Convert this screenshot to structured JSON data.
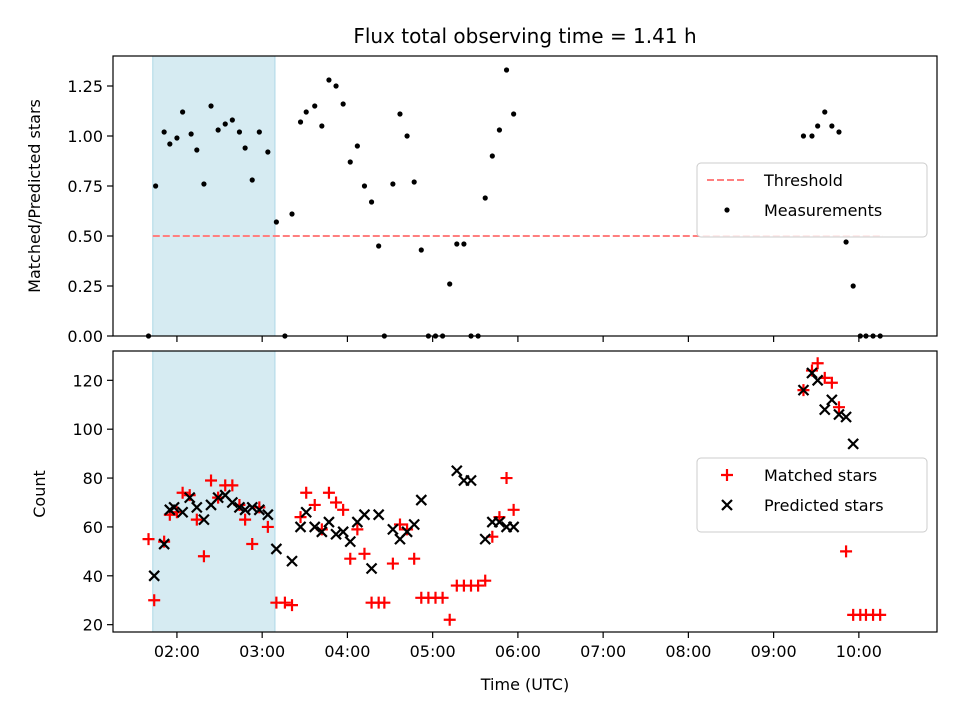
{
  "chart_data": [
    {
      "type": "scatter",
      "title": "Flux total observing time = 1.41 h",
      "xlabel": "",
      "ylabel": "Matched/Predicted stars",
      "xlim": [
        "01:15",
        "10:55"
      ],
      "ylim": [
        0,
        1.4
      ],
      "y_ticks": [
        "0.00",
        "0.25",
        "0.50",
        "0.75",
        "1.00",
        "1.25"
      ],
      "highlight_span": {
        "x_start": "01:43",
        "x_end": "03:09",
        "color": "#add8e6"
      },
      "legend_position": "center-right",
      "series": [
        {
          "name": "Threshold",
          "kind": "dashed-line",
          "color": "#ff7f7f",
          "points": [
            {
              "x": "01:43",
              "y": 0.5
            },
            {
              "x": "10:17",
              "y": 0.5
            }
          ]
        },
        {
          "name": "Measurements",
          "kind": "dot",
          "color": "#000000",
          "points": [
            {
              "x": "01:40",
              "y": 0.0
            },
            {
              "x": "01:45",
              "y": 0.75
            },
            {
              "x": "01:51",
              "y": 1.02
            },
            {
              "x": "01:55",
              "y": 0.96
            },
            {
              "x": "02:00",
              "y": 0.99
            },
            {
              "x": "02:04",
              "y": 1.12
            },
            {
              "x": "02:10",
              "y": 1.01
            },
            {
              "x": "02:14",
              "y": 0.93
            },
            {
              "x": "02:19",
              "y": 0.76
            },
            {
              "x": "02:24",
              "y": 1.15
            },
            {
              "x": "02:29",
              "y": 1.03
            },
            {
              "x": "02:34",
              "y": 1.06
            },
            {
              "x": "02:39",
              "y": 1.08
            },
            {
              "x": "02:44",
              "y": 1.02
            },
            {
              "x": "02:48",
              "y": 0.94
            },
            {
              "x": "02:53",
              "y": 0.78
            },
            {
              "x": "02:58",
              "y": 1.02
            },
            {
              "x": "03:04",
              "y": 0.92
            },
            {
              "x": "03:10",
              "y": 0.57
            },
            {
              "x": "03:16",
              "y": 0.0
            },
            {
              "x": "03:21",
              "y": 0.61
            },
            {
              "x": "03:27",
              "y": 1.07
            },
            {
              "x": "03:31",
              "y": 1.12
            },
            {
              "x": "03:37",
              "y": 1.15
            },
            {
              "x": "03:42",
              "y": 1.05
            },
            {
              "x": "03:47",
              "y": 1.28
            },
            {
              "x": "03:52",
              "y": 1.25
            },
            {
              "x": "03:57",
              "y": 1.16
            },
            {
              "x": "04:02",
              "y": 0.87
            },
            {
              "x": "04:07",
              "y": 0.95
            },
            {
              "x": "04:12",
              "y": 0.75
            },
            {
              "x": "04:17",
              "y": 0.67
            },
            {
              "x": "04:22",
              "y": 0.45
            },
            {
              "x": "04:26",
              "y": 0.0
            },
            {
              "x": "04:32",
              "y": 0.76
            },
            {
              "x": "04:37",
              "y": 1.11
            },
            {
              "x": "04:42",
              "y": 1.0
            },
            {
              "x": "04:47",
              "y": 0.77
            },
            {
              "x": "04:52",
              "y": 0.43
            },
            {
              "x": "04:57",
              "y": 0.0
            },
            {
              "x": "05:02",
              "y": 0.0
            },
            {
              "x": "05:07",
              "y": 0.0
            },
            {
              "x": "05:12",
              "y": 0.26
            },
            {
              "x": "05:17",
              "y": 0.46
            },
            {
              "x": "05:22",
              "y": 0.46
            },
            {
              "x": "05:27",
              "y": 0.0
            },
            {
              "x": "05:32",
              "y": 0.0
            },
            {
              "x": "05:37",
              "y": 0.69
            },
            {
              "x": "05:42",
              "y": 0.9
            },
            {
              "x": "05:47",
              "y": 1.03
            },
            {
              "x": "05:52",
              "y": 1.33
            },
            {
              "x": "05:57",
              "y": 1.11
            },
            {
              "x": "09:21",
              "y": 1.0
            },
            {
              "x": "09:27",
              "y": 1.0
            },
            {
              "x": "09:31",
              "y": 1.05
            },
            {
              "x": "09:36",
              "y": 1.12
            },
            {
              "x": "09:41",
              "y": 1.05
            },
            {
              "x": "09:46",
              "y": 1.02
            },
            {
              "x": "09:51",
              "y": 0.47
            },
            {
              "x": "09:56",
              "y": 0.25
            },
            {
              "x": "10:01",
              "y": 0.0
            },
            {
              "x": "10:05",
              "y": 0.0
            },
            {
              "x": "10:10",
              "y": 0.0
            },
            {
              "x": "10:15",
              "y": 0.0
            }
          ]
        }
      ]
    },
    {
      "type": "scatter",
      "title": "",
      "xlabel": "Time (UTC)",
      "ylabel": "Count",
      "xlim": [
        "01:15",
        "10:55"
      ],
      "ylim": [
        17,
        132
      ],
      "x_ticks": [
        "02:00",
        "03:00",
        "04:00",
        "05:00",
        "06:00",
        "07:00",
        "08:00",
        "09:00",
        "10:00"
      ],
      "y_ticks": [
        "20",
        "40",
        "60",
        "80",
        "100",
        "120"
      ],
      "highlight_span": {
        "x_start": "01:43",
        "x_end": "03:09",
        "color": "#add8e6"
      },
      "legend_position": "center-right",
      "series": [
        {
          "name": "Matched stars",
          "marker": "+",
          "color": "#ff0000",
          "points": [
            {
              "x": "01:40",
              "y": 55
            },
            {
              "x": "01:44",
              "y": 30
            },
            {
              "x": "01:51",
              "y": 54
            },
            {
              "x": "01:55",
              "y": 65
            },
            {
              "x": "02:00",
              "y": 66
            },
            {
              "x": "02:04",
              "y": 74
            },
            {
              "x": "02:09",
              "y": 73
            },
            {
              "x": "02:14",
              "y": 63
            },
            {
              "x": "02:19",
              "y": 48
            },
            {
              "x": "02:24",
              "y": 79
            },
            {
              "x": "02:29",
              "y": 72
            },
            {
              "x": "02:34",
              "y": 77
            },
            {
              "x": "02:39",
              "y": 77
            },
            {
              "x": "02:44",
              "y": 69
            },
            {
              "x": "02:48",
              "y": 63
            },
            {
              "x": "02:53",
              "y": 53
            },
            {
              "x": "02:58",
              "y": 68
            },
            {
              "x": "03:04",
              "y": 60
            },
            {
              "x": "03:10",
              "y": 29
            },
            {
              "x": "03:16",
              "y": 29
            },
            {
              "x": "03:21",
              "y": 28
            },
            {
              "x": "03:27",
              "y": 64
            },
            {
              "x": "03:31",
              "y": 74
            },
            {
              "x": "03:37",
              "y": 69
            },
            {
              "x": "03:42",
              "y": 59
            },
            {
              "x": "03:47",
              "y": 74
            },
            {
              "x": "03:52",
              "y": 70
            },
            {
              "x": "03:57",
              "y": 67
            },
            {
              "x": "04:02",
              "y": 47
            },
            {
              "x": "04:07",
              "y": 59
            },
            {
              "x": "04:12",
              "y": 49
            },
            {
              "x": "04:17",
              "y": 29
            },
            {
              "x": "04:22",
              "y": 29
            },
            {
              "x": "04:26",
              "y": 29
            },
            {
              "x": "04:32",
              "y": 45
            },
            {
              "x": "04:37",
              "y": 61
            },
            {
              "x": "04:42",
              "y": 59
            },
            {
              "x": "04:47",
              "y": 47
            },
            {
              "x": "04:52",
              "y": 31
            },
            {
              "x": "04:57",
              "y": 31
            },
            {
              "x": "05:02",
              "y": 31
            },
            {
              "x": "05:07",
              "y": 31
            },
            {
              "x": "05:12",
              "y": 22
            },
            {
              "x": "05:17",
              "y": 36
            },
            {
              "x": "05:22",
              "y": 36
            },
            {
              "x": "05:27",
              "y": 36
            },
            {
              "x": "05:32",
              "y": 36
            },
            {
              "x": "05:37",
              "y": 38
            },
            {
              "x": "05:42",
              "y": 56
            },
            {
              "x": "05:47",
              "y": 64
            },
            {
              "x": "05:52",
              "y": 80
            },
            {
              "x": "05:57",
              "y": 67
            },
            {
              "x": "09:21",
              "y": 116
            },
            {
              "x": "09:27",
              "y": 124
            },
            {
              "x": "09:31",
              "y": 127
            },
            {
              "x": "09:36",
              "y": 121
            },
            {
              "x": "09:41",
              "y": 119
            },
            {
              "x": "09:46",
              "y": 109
            },
            {
              "x": "09:51",
              "y": 50
            },
            {
              "x": "09:56",
              "y": 24
            },
            {
              "x": "10:01",
              "y": 24
            },
            {
              "x": "10:05",
              "y": 24
            },
            {
              "x": "10:10",
              "y": 24
            },
            {
              "x": "10:15",
              "y": 24
            }
          ]
        },
        {
          "name": "Predicted stars",
          "marker": "x",
          "color": "#000000",
          "points": [
            {
              "x": "01:44",
              "y": 40
            },
            {
              "x": "01:51",
              "y": 53
            },
            {
              "x": "01:55",
              "y": 67
            },
            {
              "x": "01:58",
              "y": 68
            },
            {
              "x": "02:04",
              "y": 66
            },
            {
              "x": "02:09",
              "y": 72
            },
            {
              "x": "02:14",
              "y": 68
            },
            {
              "x": "02:19",
              "y": 63
            },
            {
              "x": "02:24",
              "y": 69
            },
            {
              "x": "02:29",
              "y": 72
            },
            {
              "x": "02:34",
              "y": 73
            },
            {
              "x": "02:39",
              "y": 70
            },
            {
              "x": "02:44",
              "y": 68
            },
            {
              "x": "02:48",
              "y": 67
            },
            {
              "x": "02:53",
              "y": 68
            },
            {
              "x": "02:58",
              "y": 67
            },
            {
              "x": "03:04",
              "y": 65
            },
            {
              "x": "03:10",
              "y": 51
            },
            {
              "x": "03:21",
              "y": 46
            },
            {
              "x": "03:27",
              "y": 60
            },
            {
              "x": "03:31",
              "y": 66
            },
            {
              "x": "03:37",
              "y": 60
            },
            {
              "x": "03:42",
              "y": 58
            },
            {
              "x": "03:47",
              "y": 62
            },
            {
              "x": "03:52",
              "y": 57
            },
            {
              "x": "03:57",
              "y": 58
            },
            {
              "x": "04:02",
              "y": 54
            },
            {
              "x": "04:07",
              "y": 62
            },
            {
              "x": "04:12",
              "y": 65
            },
            {
              "x": "04:17",
              "y": 43
            },
            {
              "x": "04:22",
              "y": 65
            },
            {
              "x": "04:32",
              "y": 59
            },
            {
              "x": "04:37",
              "y": 55
            },
            {
              "x": "04:42",
              "y": 58
            },
            {
              "x": "04:47",
              "y": 61
            },
            {
              "x": "04:52",
              "y": 71
            },
            {
              "x": "05:17",
              "y": 83
            },
            {
              "x": "05:22",
              "y": 79
            },
            {
              "x": "05:27",
              "y": 79
            },
            {
              "x": "05:37",
              "y": 55
            },
            {
              "x": "05:42",
              "y": 62
            },
            {
              "x": "05:47",
              "y": 62
            },
            {
              "x": "05:52",
              "y": 60
            },
            {
              "x": "05:57",
              "y": 60
            },
            {
              "x": "09:21",
              "y": 116
            },
            {
              "x": "09:27",
              "y": 123
            },
            {
              "x": "09:31",
              "y": 120
            },
            {
              "x": "09:36",
              "y": 108
            },
            {
              "x": "09:41",
              "y": 112
            },
            {
              "x": "09:46",
              "y": 106
            },
            {
              "x": "09:51",
              "y": 105
            },
            {
              "x": "09:56",
              "y": 94
            }
          ]
        }
      ]
    }
  ]
}
